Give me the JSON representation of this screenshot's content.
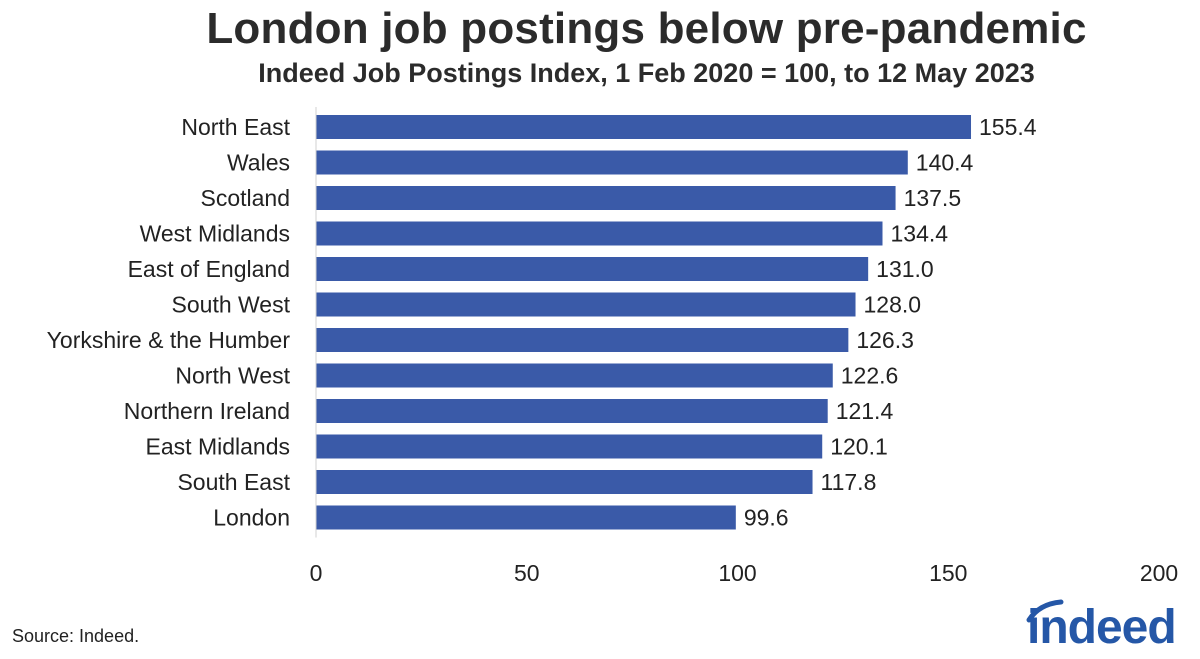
{
  "chart_data": {
    "type": "bar",
    "orientation": "horizontal",
    "title": "London job postings below pre-pandemic",
    "subtitle": "Indeed Job Postings Index, 1 Feb 2020 = 100, to 12 May 2023",
    "categories": [
      "North East",
      "Wales",
      "Scotland",
      "West Midlands",
      "East of England",
      "South West",
      "Yorkshire & the Humber",
      "North West",
      "Northern Ireland",
      "East Midlands",
      "South East",
      "London"
    ],
    "values": [
      155.4,
      140.4,
      137.5,
      134.4,
      131.0,
      128.0,
      126.3,
      122.6,
      121.4,
      120.1,
      117.8,
      99.6
    ],
    "value_labels": [
      "155.4",
      "140.4",
      "137.5",
      "134.4",
      "131.0",
      "128.0",
      "126.3",
      "122.6",
      "121.4",
      "120.1",
      "117.8",
      "99.6"
    ],
    "xlim": [
      0,
      200
    ],
    "xticks": [
      "0",
      "50",
      "100",
      "150",
      "200"
    ],
    "grid": false,
    "bar_color": "#3a5aa8"
  },
  "footer": {
    "source": "Source: Indeed."
  },
  "brand": {
    "logo_text": "indeed",
    "logo_color": "#2557a7"
  }
}
